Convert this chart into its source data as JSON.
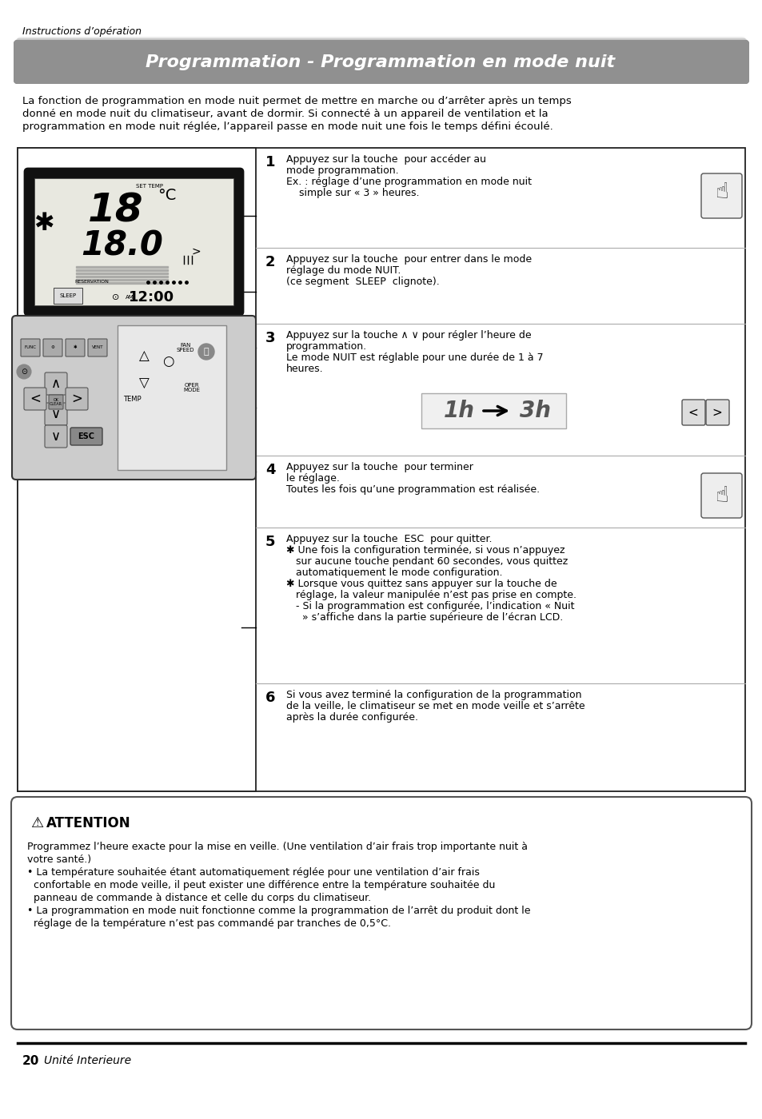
{
  "page_bg": "#ffffff",
  "top_label": "Instructions d’opération",
  "title": "Programmation - Programmation en mode nuit",
  "intro_text": "La fonction de programmation en mode nuit permet de mettre en marche ou d’arrêter après un temps\ndonné en mode nuit du climatiseur, avant de dormir. Si connecté à un appareil de ventilation et la\nprogrammation en mode nuit réglée, l’appareil passe en mode nuit une fois le temps défini écoulé.",
  "steps": [
    {
      "num": "1",
      "lines": [
        "Appuyez sur la touche  pour accéder au",
        "mode programmation.",
        "Ex. : réglage d’une programmation en mode nuit",
        "    simple sur « 3 » heures."
      ],
      "has_icon_right": true
    },
    {
      "num": "2",
      "lines": [
        "Appuyez sur la touche  pour entrer dans le mode",
        "réglage du mode NUIT.",
        "(ce segment  SLEEP  clignote)."
      ],
      "has_icon_right": false
    },
    {
      "num": "3",
      "lines": [
        "Appuyez sur la touche ∧ ∨ pour régler l’heure de",
        "programmation.",
        "Le mode NUIT est réglable pour une durée de 1 à 7",
        "heures."
      ],
      "has_arrow": true,
      "has_icon_right": true
    },
    {
      "num": "4",
      "lines": [
        "Appuyez sur la touche  pour terminer",
        "le réglage.",
        "Toutes les fois qu’une programmation est réalisée."
      ],
      "has_icon_right": true
    },
    {
      "num": "5",
      "lines": [
        "Appuyez sur la touche  ESC  pour quitter.",
        "✱ Une fois la configuration terminée, si vous n’appuyez",
        "   sur aucune touche pendant 60 secondes, vous quittez",
        "   automatiquement le mode configuration.",
        "✱ Lorsque vous quittez sans appuyer sur la touche de",
        "   réglage, la valeur manipulée n’est pas prise en compte.",
        "   - Si la programmation est configurée, l’indication « Nuit",
        "     » s’affiche dans la partie supérieure de l’écran LCD."
      ],
      "has_icon_right": false
    },
    {
      "num": "6",
      "lines": [
        "Si vous avez terminé la configuration de la programmation",
        "de la veille, le climatiseur se met en mode veille et s’arrête",
        "après la durée configurée."
      ],
      "has_icon_right": false
    }
  ],
  "attention_title": "ATTENTION",
  "attention_lines": [
    "Programmez l’heure exacte pour la mise en veille. (Une ventilation d’air frais trop importante nuit à",
    "votre santé.)",
    "• La température souhaitée étant automatiquement réglée pour une ventilation d’air frais",
    "  confortable en mode veille, il peut exister une différence entre la température souhaitée du",
    "  panneau de commande à distance et celle du corps du climatiseur.",
    "• La programmation en mode nuit fonctionne comme la programmation de l’arrêt du produit dont le",
    "  réglage de la température n’est pas commandé par tranches de 0,5°C."
  ],
  "footer_num": "20",
  "footer_text": "Unité Interieure"
}
